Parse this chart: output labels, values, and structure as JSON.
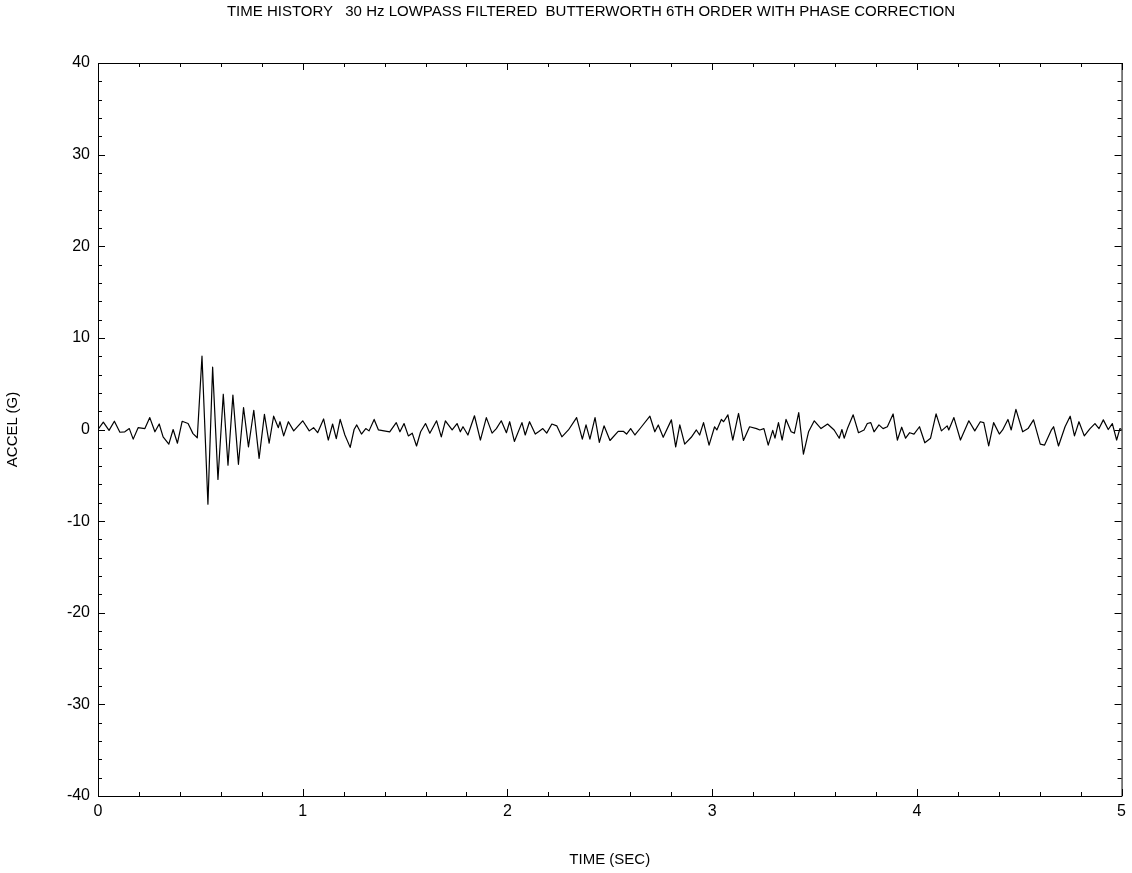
{
  "chart_data": {
    "type": "line",
    "title": "TIME HISTORY   30 Hz LOWPASS FILTERED  BUTTERWORTH 6TH ORDER WITH PHASE CORRECTION",
    "xlabel": "TIME (SEC)",
    "ylabel": "ACCEL (G)",
    "x": [
      0,
      0.002,
      0.026,
      0.054,
      0.08,
      0.107,
      0.131,
      0.153,
      0.172,
      0.196,
      0.229,
      0.253,
      0.278,
      0.299,
      0.318,
      0.346,
      0.367,
      0.388,
      0.411,
      0.44,
      0.464,
      0.485,
      0.508,
      0.537,
      0.56,
      0.586,
      0.612,
      0.635,
      0.659,
      0.686,
      0.711,
      0.735,
      0.761,
      0.787,
      0.813,
      0.836,
      0.858,
      0.881,
      0.889,
      0.907,
      0.93,
      0.956,
      1.0,
      1.032,
      1.053,
      1.073,
      1.102,
      1.125,
      1.146,
      1.164,
      1.183,
      1.206,
      1.232,
      1.251,
      1.264,
      1.287,
      1.308,
      1.324,
      1.349,
      1.37,
      1.397,
      1.425,
      1.457,
      1.475,
      1.495,
      1.516,
      1.535,
      1.556,
      1.576,
      1.6,
      1.621,
      1.654,
      1.677,
      1.697,
      1.73,
      1.754,
      1.77,
      1.783,
      1.807,
      1.839,
      1.868,
      1.897,
      1.925,
      1.946,
      1.97,
      1.995,
      2.011,
      2.034,
      2.071,
      2.087,
      2.108,
      2.136,
      2.152,
      2.173,
      2.192,
      2.217,
      2.241,
      2.266,
      2.298,
      2.338,
      2.366,
      2.384,
      2.403,
      2.428,
      2.449,
      2.472,
      2.501,
      2.541,
      2.566,
      2.582,
      2.602,
      2.623,
      2.655,
      2.696,
      2.72,
      2.737,
      2.761,
      2.801,
      2.822,
      2.842,
      2.866,
      2.898,
      2.923,
      2.939,
      2.958,
      2.985,
      3.012,
      3.023,
      3.045,
      3.056,
      3.077,
      3.101,
      3.129,
      3.153,
      3.183,
      3.217,
      3.233,
      3.253,
      3.274,
      3.296,
      3.307,
      3.324,
      3.342,
      3.361,
      3.386,
      3.402,
      3.423,
      3.446,
      3.471,
      3.499,
      3.532,
      3.564,
      3.596,
      3.621,
      3.634,
      3.645,
      3.661,
      3.689,
      3.715,
      3.742,
      3.758,
      3.775,
      3.791,
      3.815,
      3.835,
      3.856,
      3.884,
      3.905,
      3.926,
      3.945,
      3.965,
      3.986,
      4.013,
      4.039,
      4.067,
      4.094,
      4.12,
      4.148,
      4.156,
      4.181,
      4.213,
      4.254,
      4.283,
      4.31,
      4.327,
      4.351,
      4.375,
      4.403,
      4.419,
      4.445,
      4.461,
      4.484,
      4.517,
      4.543,
      4.57,
      4.603,
      4.624,
      4.656,
      4.668,
      4.692,
      4.724,
      4.749,
      4.77,
      4.792,
      4.818,
      4.846,
      4.87,
      4.89,
      4.911,
      4.935,
      4.955,
      4.976,
      4.992,
      5.0
    ],
    "series": [
      {
        "color": "#000000",
        "values": [
          0,
          0,
          0.8,
          -0.1,
          0.9,
          -0.3,
          -0.25,
          0.1,
          -1.05,
          0.2,
          0.1,
          1.3,
          -0.25,
          0.6,
          -0.8,
          -1.6,
          0,
          -1.5,
          0.9,
          0.65,
          -0.45,
          -0.9,
          8.0,
          -8.15,
          6.8,
          -5.45,
          3.85,
          -3.9,
          3.75,
          -3.8,
          2.4,
          -1.9,
          2.1,
          -3.15,
          1.65,
          -1.5,
          1.45,
          0.2,
          0.85,
          -0.7,
          0.85,
          -0.15,
          0.95,
          -0.15,
          0.2,
          -0.35,
          1.15,
          -1.15,
          0.6,
          -1.0,
          1.1,
          -0.6,
          -1.95,
          0,
          0.5,
          -0.5,
          0.1,
          -0.15,
          1.1,
          -0.05,
          -0.15,
          -0.25,
          0.75,
          -0.25,
          0.65,
          -0.7,
          -0.4,
          -1.8,
          -0.25,
          0.65,
          -0.4,
          0.95,
          -0.8,
          0.95,
          -0.05,
          0.65,
          -0.25,
          0.3,
          -0.6,
          1.5,
          -1.15,
          1.3,
          -0.4,
          0.1,
          0.95,
          -0.35,
          0.85,
          -1.3,
          0.75,
          -0.6,
          0.85,
          -0.5,
          -0.25,
          0.1,
          -0.4,
          0.6,
          0.4,
          -0.8,
          -0.05,
          1.3,
          -1.05,
          0.5,
          -1.05,
          1.3,
          -1.4,
          0.4,
          -1.2,
          -0.2,
          -0.2,
          -0.5,
          0.1,
          -0.6,
          0.3,
          1.45,
          -0.25,
          0.5,
          -0.85,
          1.05,
          -1.9,
          0.5,
          -1.6,
          -0.85,
          -0.05,
          -0.6,
          0.75,
          -1.7,
          0.3,
          -0.05,
          1.1,
          0.85,
          1.6,
          -1.15,
          1.75,
          -1.2,
          0.3,
          0.1,
          -0.05,
          0.1,
          -1.7,
          -0.1,
          -0.95,
          0.75,
          -1.15,
          1.1,
          -0.25,
          -0.4,
          1.85,
          -2.7,
          -0.25,
          0.95,
          0.1,
          0.6,
          -0.05,
          -0.95,
          0,
          -0.95,
          0.1,
          1.6,
          -0.35,
          -0.05,
          0.65,
          0.75,
          -0.25,
          0.5,
          0.1,
          0.3,
          1.7,
          -1.15,
          0.25,
          -0.95,
          -0.35,
          -0.5,
          0.3,
          -1.45,
          -0.95,
          1.7,
          -0.15,
          0.4,
          -0.05,
          1.3,
          -1.15,
          0.95,
          -0.15,
          0.85,
          0.75,
          -1.8,
          0.75,
          -0.5,
          -0.05,
          1.1,
          -0.05,
          2.2,
          -0.25,
          0.1,
          1.05,
          -1.6,
          -1.7,
          -0.1,
          0.3,
          -1.8,
          0.3,
          1.45,
          -0.7,
          0.85,
          -0.7,
          0.1,
          0.65,
          0.1,
          1.05,
          0,
          0.65,
          -1.15,
          0.1,
          0
        ]
      }
    ],
    "xlim": [
      0,
      5
    ],
    "xticks": [
      0,
      {
        "value": 0.2,
        "label": null
      },
      {
        "value": 0.4,
        "label": null
      },
      {
        "value": 0.6,
        "label": null
      },
      {
        "value": 0.8,
        "label": null
      },
      1,
      {
        "value": 1.2,
        "label": null
      },
      {
        "value": 1.4,
        "label": null
      },
      {
        "value": 1.6,
        "label": null
      },
      {
        "value": 1.8,
        "label": null
      },
      2,
      {
        "value": 2.2,
        "label": null
      },
      {
        "value": 2.4,
        "label": null
      },
      {
        "value": 2.6,
        "label": null
      },
      {
        "value": 2.8,
        "label": null
      },
      3,
      {
        "value": 3.2,
        "label": null
      },
      {
        "value": 3.4,
        "label": null
      },
      {
        "value": 3.6,
        "label": null
      },
      {
        "value": 3.8,
        "label": null
      },
      4,
      {
        "value": 4.2,
        "label": null
      },
      {
        "value": 4.4,
        "label": null
      },
      {
        "value": 4.6,
        "label": null
      },
      {
        "value": 4.8,
        "label": null
      },
      5
    ],
    "ylim": [
      -40,
      40
    ],
    "yticks": [
      -40,
      {
        "value": -38,
        "label": null
      },
      {
        "value": -36,
        "label": null
      },
      {
        "value": -34,
        "label": null
      },
      {
        "value": -32,
        "label": null
      },
      -30,
      {
        "value": -28,
        "label": null
      },
      {
        "value": -26,
        "label": null
      },
      {
        "value": -24,
        "label": null
      },
      {
        "value": -22,
        "label": null
      },
      -20,
      {
        "value": -18,
        "label": null
      },
      {
        "value": -16,
        "label": null
      },
      {
        "value": -14,
        "label": null
      },
      {
        "value": -12,
        "label": null
      },
      -10,
      {
        "value": -8,
        "label": null
      },
      {
        "value": -6,
        "label": null
      },
      {
        "value": -4,
        "label": null
      },
      {
        "value": -2,
        "label": null
      },
      0,
      {
        "value": 2,
        "label": null
      },
      {
        "value": 4,
        "label": null
      },
      {
        "value": 6,
        "label": null
      },
      {
        "value": 8,
        "label": null
      },
      10,
      {
        "value": 12,
        "label": null
      },
      {
        "value": 14,
        "label": null
      },
      {
        "value": 16,
        "label": null
      },
      {
        "value": 18,
        "label": null
      },
      20,
      {
        "value": 22,
        "label": null
      },
      {
        "value": 24,
        "label": null
      },
      {
        "value": 26,
        "label": null
      },
      {
        "value": 28,
        "label": null
      },
      30,
      {
        "value": 32,
        "label": null
      },
      {
        "value": 34,
        "label": null
      },
      {
        "value": 36,
        "label": null
      },
      {
        "value": 38,
        "label": null
      },
      40
    ],
    "grid": false,
    "legend": false,
    "marker": "none",
    "line_style": "solid"
  }
}
